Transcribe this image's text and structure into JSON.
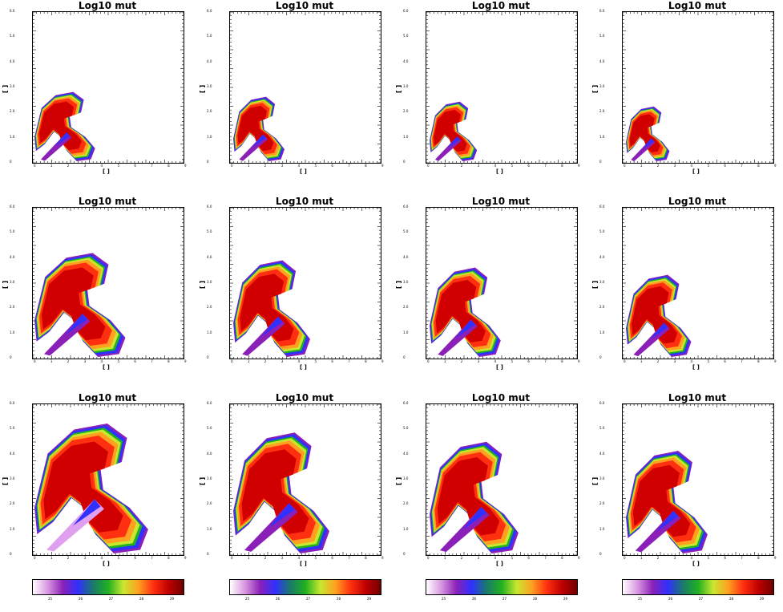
{
  "chart_data": [
    {
      "type": "heatmap",
      "title": "Log10 mut",
      "ylabel": "[ ]",
      "xlabel": "[ ]",
      "yticks": [
        "0",
        "1.0 ",
        "2.0 ",
        "3.0 ",
        "4.0 ",
        "5.0 ",
        "6.0 "
      ],
      "xticks": [
        "0",
        "1",
        "2",
        "3",
        "4",
        "5",
        "6",
        "7",
        "8",
        "9"
      ],
      "frame": 0
    },
    {
      "type": "heatmap",
      "title": "Log10 mut",
      "ylabel": "[ ]",
      "xlabel": "[ ]",
      "yticks": [
        "0",
        "1.0 ",
        "2.0 ",
        "3.0 ",
        "4.0 ",
        "5.0 ",
        "6.0 "
      ],
      "xticks": [
        "0",
        "1",
        "2",
        "3",
        "4",
        "5",
        "6",
        "7",
        "8",
        "9"
      ],
      "frame": 1
    },
    {
      "type": "heatmap",
      "title": "Log10 mut",
      "ylabel": "[ ]",
      "xlabel": "[ ]",
      "yticks": [
        "0",
        "1.0 ",
        "2.0 ",
        "3.0 ",
        "4.0 ",
        "5.0 ",
        "6.0 "
      ],
      "xticks": [
        "0",
        "1",
        "2",
        "3",
        "4",
        "5",
        "6",
        "7",
        "8",
        "9"
      ],
      "frame": 2
    },
    {
      "type": "heatmap",
      "title": "Log10 mut",
      "ylabel": "[ ]",
      "xlabel": "[ ]",
      "yticks": [
        "0",
        "1.0 ",
        "2.0 ",
        "3.0 ",
        "4.0 ",
        "5.0 ",
        "6.0 "
      ],
      "xticks": [
        "0",
        "1",
        "2",
        "3",
        "4",
        "5",
        "6",
        "7",
        "8",
        "9"
      ],
      "frame": 3
    },
    {
      "type": "heatmap",
      "title": "Log10 mut",
      "ylabel": "[ ]",
      "xlabel": "[ ]",
      "yticks": [
        "0",
        "1.0 ",
        "2.0 ",
        "3.0 ",
        "4.0 ",
        "5.0 ",
        "6.0 "
      ],
      "xticks": [
        "0",
        "1",
        "2",
        "3",
        "4",
        "5",
        "6",
        "7",
        "8",
        "9"
      ],
      "frame": 4
    },
    {
      "type": "heatmap",
      "title": "Log10 mut",
      "ylabel": "[ ]",
      "xlabel": "[ ]",
      "yticks": [
        "0",
        "1.0 ",
        "2.0 ",
        "3.0 ",
        "4.0 ",
        "5.0 ",
        "6.0 "
      ],
      "xticks": [
        "0",
        "1",
        "2",
        "3",
        "4",
        "5",
        "6",
        "7",
        "8",
        "9"
      ],
      "frame": 5
    },
    {
      "type": "heatmap",
      "title": "Log10 mut",
      "ylabel": "[ ]",
      "xlabel": "[ ]",
      "yticks": [
        "0",
        "1.0 ",
        "2.0 ",
        "3.0 ",
        "4.0 ",
        "5.0 ",
        "6.0 "
      ],
      "xticks": [
        "0",
        "1",
        "2",
        "3",
        "4",
        "5",
        "6",
        "7",
        "8",
        "9"
      ],
      "frame": 6
    },
    {
      "type": "heatmap",
      "title": "Log10 mut",
      "ylabel": "[ ]",
      "xlabel": "[ ]",
      "yticks": [
        "0",
        "1.0 ",
        "2.0 ",
        "3.0 ",
        "4.0 ",
        "5.0 ",
        "6.0 "
      ],
      "xticks": [
        "0",
        "1",
        "2",
        "3",
        "4",
        "5",
        "6",
        "7",
        "8",
        "9"
      ],
      "frame": 7
    },
    {
      "type": "heatmap",
      "title": "Log10 mut",
      "ylabel": "[ ]",
      "xlabel": "[ ]",
      "yticks": [
        "0",
        "1.0 ",
        "2.0 ",
        "3.0 ",
        "4.0 ",
        "5.0 ",
        "6.0 "
      ],
      "xticks": [
        "0",
        "1",
        "2",
        "3",
        "4",
        "5",
        "6",
        "7",
        "8",
        "9"
      ],
      "frame": 8
    },
    {
      "type": "heatmap",
      "title": "Log10 mut",
      "ylabel": "[ ]",
      "xlabel": "[ ]",
      "yticks": [
        "0",
        "1.0 ",
        "2.0 ",
        "3.0 ",
        "4.0 ",
        "5.0 ",
        "6.0 "
      ],
      "xticks": [
        "0",
        "1",
        "2",
        "3",
        "4",
        "5",
        "6",
        "7",
        "8",
        "9"
      ],
      "frame": 9
    },
    {
      "type": "heatmap",
      "title": "Log10 mut",
      "ylabel": "[ ]",
      "xlabel": "[ ]",
      "yticks": [
        "0",
        "1.0 ",
        "2.0 ",
        "3.0 ",
        "4.0 ",
        "5.0 ",
        "6.0 "
      ],
      "xticks": [
        "0",
        "1",
        "2",
        "3",
        "4",
        "5",
        "6",
        "7",
        "8",
        "9"
      ],
      "frame": 10
    },
    {
      "type": "heatmap",
      "title": "Log10 mut",
      "ylabel": "[ ]",
      "xlabel": "[ ]",
      "yticks": [
        "0",
        "1.0 ",
        "2.0 ",
        "3.0 ",
        "4.0 ",
        "5.0 ",
        "6.0 "
      ],
      "xticks": [
        "0",
        "1",
        "2",
        "3",
        "4",
        "5",
        "6",
        "7",
        "8",
        "9"
      ],
      "frame": 11
    }
  ],
  "colorbars": [
    {
      "stops": [
        "#ffffff",
        "#d896e0",
        "#8a20b8",
        "#3030ff",
        "#1a7a6a",
        "#20b020",
        "#c8e830",
        "#ffa020",
        "#ff3010",
        "#c00000",
        "#700000"
      ],
      "ticks": [
        "25",
        "26",
        "27",
        "28",
        "29"
      ]
    },
    {
      "stops": [
        "#ffffff",
        "#d896e0",
        "#8a20b8",
        "#3030ff",
        "#1a7a6a",
        "#20b020",
        "#c8e830",
        "#ffa020",
        "#ff3010",
        "#c00000",
        "#700000"
      ],
      "ticks": [
        "25",
        "26",
        "27",
        "28",
        "29"
      ]
    },
    {
      "stops": [
        "#ffffff",
        "#d896e0",
        "#8a20b8",
        "#3030ff",
        "#1a7a6a",
        "#20b020",
        "#c8e830",
        "#ffa020",
        "#ff3010",
        "#c00000",
        "#700000"
      ],
      "ticks": [
        "25",
        "26",
        "27",
        "28",
        "29"
      ]
    },
    {
      "stops": [
        "#ffffff",
        "#d896e0",
        "#8a20b8",
        "#3030ff",
        "#1a7a6a",
        "#20b020",
        "#c8e830",
        "#ffa020",
        "#ff3010",
        "#c00000",
        "#700000"
      ],
      "ticks": [
        "25",
        "26",
        "27",
        "28",
        "29"
      ]
    }
  ],
  "colors": {
    "background": "#ffffff",
    "axis": "#000000"
  }
}
